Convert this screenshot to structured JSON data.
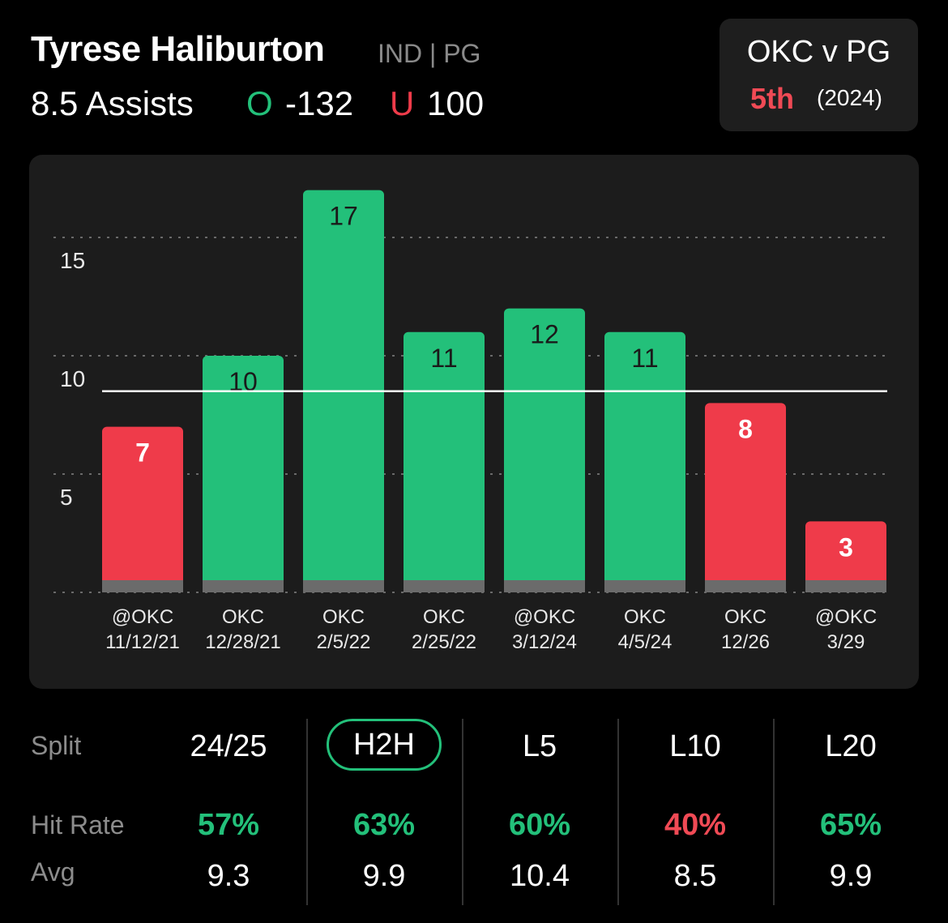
{
  "header": {
    "player_name": "Tyrese Haliburton",
    "team_pos": "IND | PG",
    "prop_line": "8.5 Assists",
    "over_mark": "O",
    "over_odds": "-132",
    "under_mark": "U",
    "under_odds": "100"
  },
  "matchup": {
    "title": "OKC v PG",
    "rank": "5th",
    "year": "(2024)"
  },
  "colors": {
    "over": "#23c07a",
    "under": "#ef3b4a",
    "panel": "#1c1c1c"
  },
  "chart_data": {
    "type": "bar",
    "categories": [
      "@OKC 11/12/21",
      "OKC 12/28/21",
      "OKC 2/5/22",
      "OKC 2/25/22",
      "@OKC 3/12/24",
      "OKC 4/5/24",
      "OKC 12/26",
      "@OKC 3/29"
    ],
    "tick_top": [
      "@OKC",
      "OKC",
      "OKC",
      "OKC",
      "@OKC",
      "OKC",
      "OKC",
      "@OKC"
    ],
    "tick_bottom": [
      "11/12/21",
      "12/28/21",
      "2/5/22",
      "2/25/22",
      "3/12/24",
      "4/5/24",
      "12/26",
      "3/29"
    ],
    "values": [
      7,
      10,
      17,
      11,
      12,
      11,
      8,
      3
    ],
    "result": [
      "under",
      "over",
      "over",
      "over",
      "over",
      "over",
      "under",
      "under"
    ],
    "yticks": [
      5,
      10,
      15
    ],
    "ylim": [
      0,
      17
    ],
    "grid": true,
    "line_value": 8.5,
    "title": "",
    "xlabel": "",
    "ylabel": ""
  },
  "splits": {
    "row_labels": {
      "split": "Split",
      "hit_rate": "Hit Rate",
      "avg": "Avg"
    },
    "columns": [
      {
        "label": "24/25",
        "hit_rate": "57%",
        "hit_status": "over",
        "avg": "9.3",
        "active": false
      },
      {
        "label": "H2H",
        "hit_rate": "63%",
        "hit_status": "over",
        "avg": "9.9",
        "active": true
      },
      {
        "label": "L5",
        "hit_rate": "60%",
        "hit_status": "over",
        "avg": "10.4",
        "active": false
      },
      {
        "label": "L10",
        "hit_rate": "40%",
        "hit_status": "under",
        "avg": "8.5",
        "active": false
      },
      {
        "label": "L20",
        "hit_rate": "65%",
        "hit_status": "over",
        "avg": "9.9",
        "active": false
      }
    ]
  }
}
